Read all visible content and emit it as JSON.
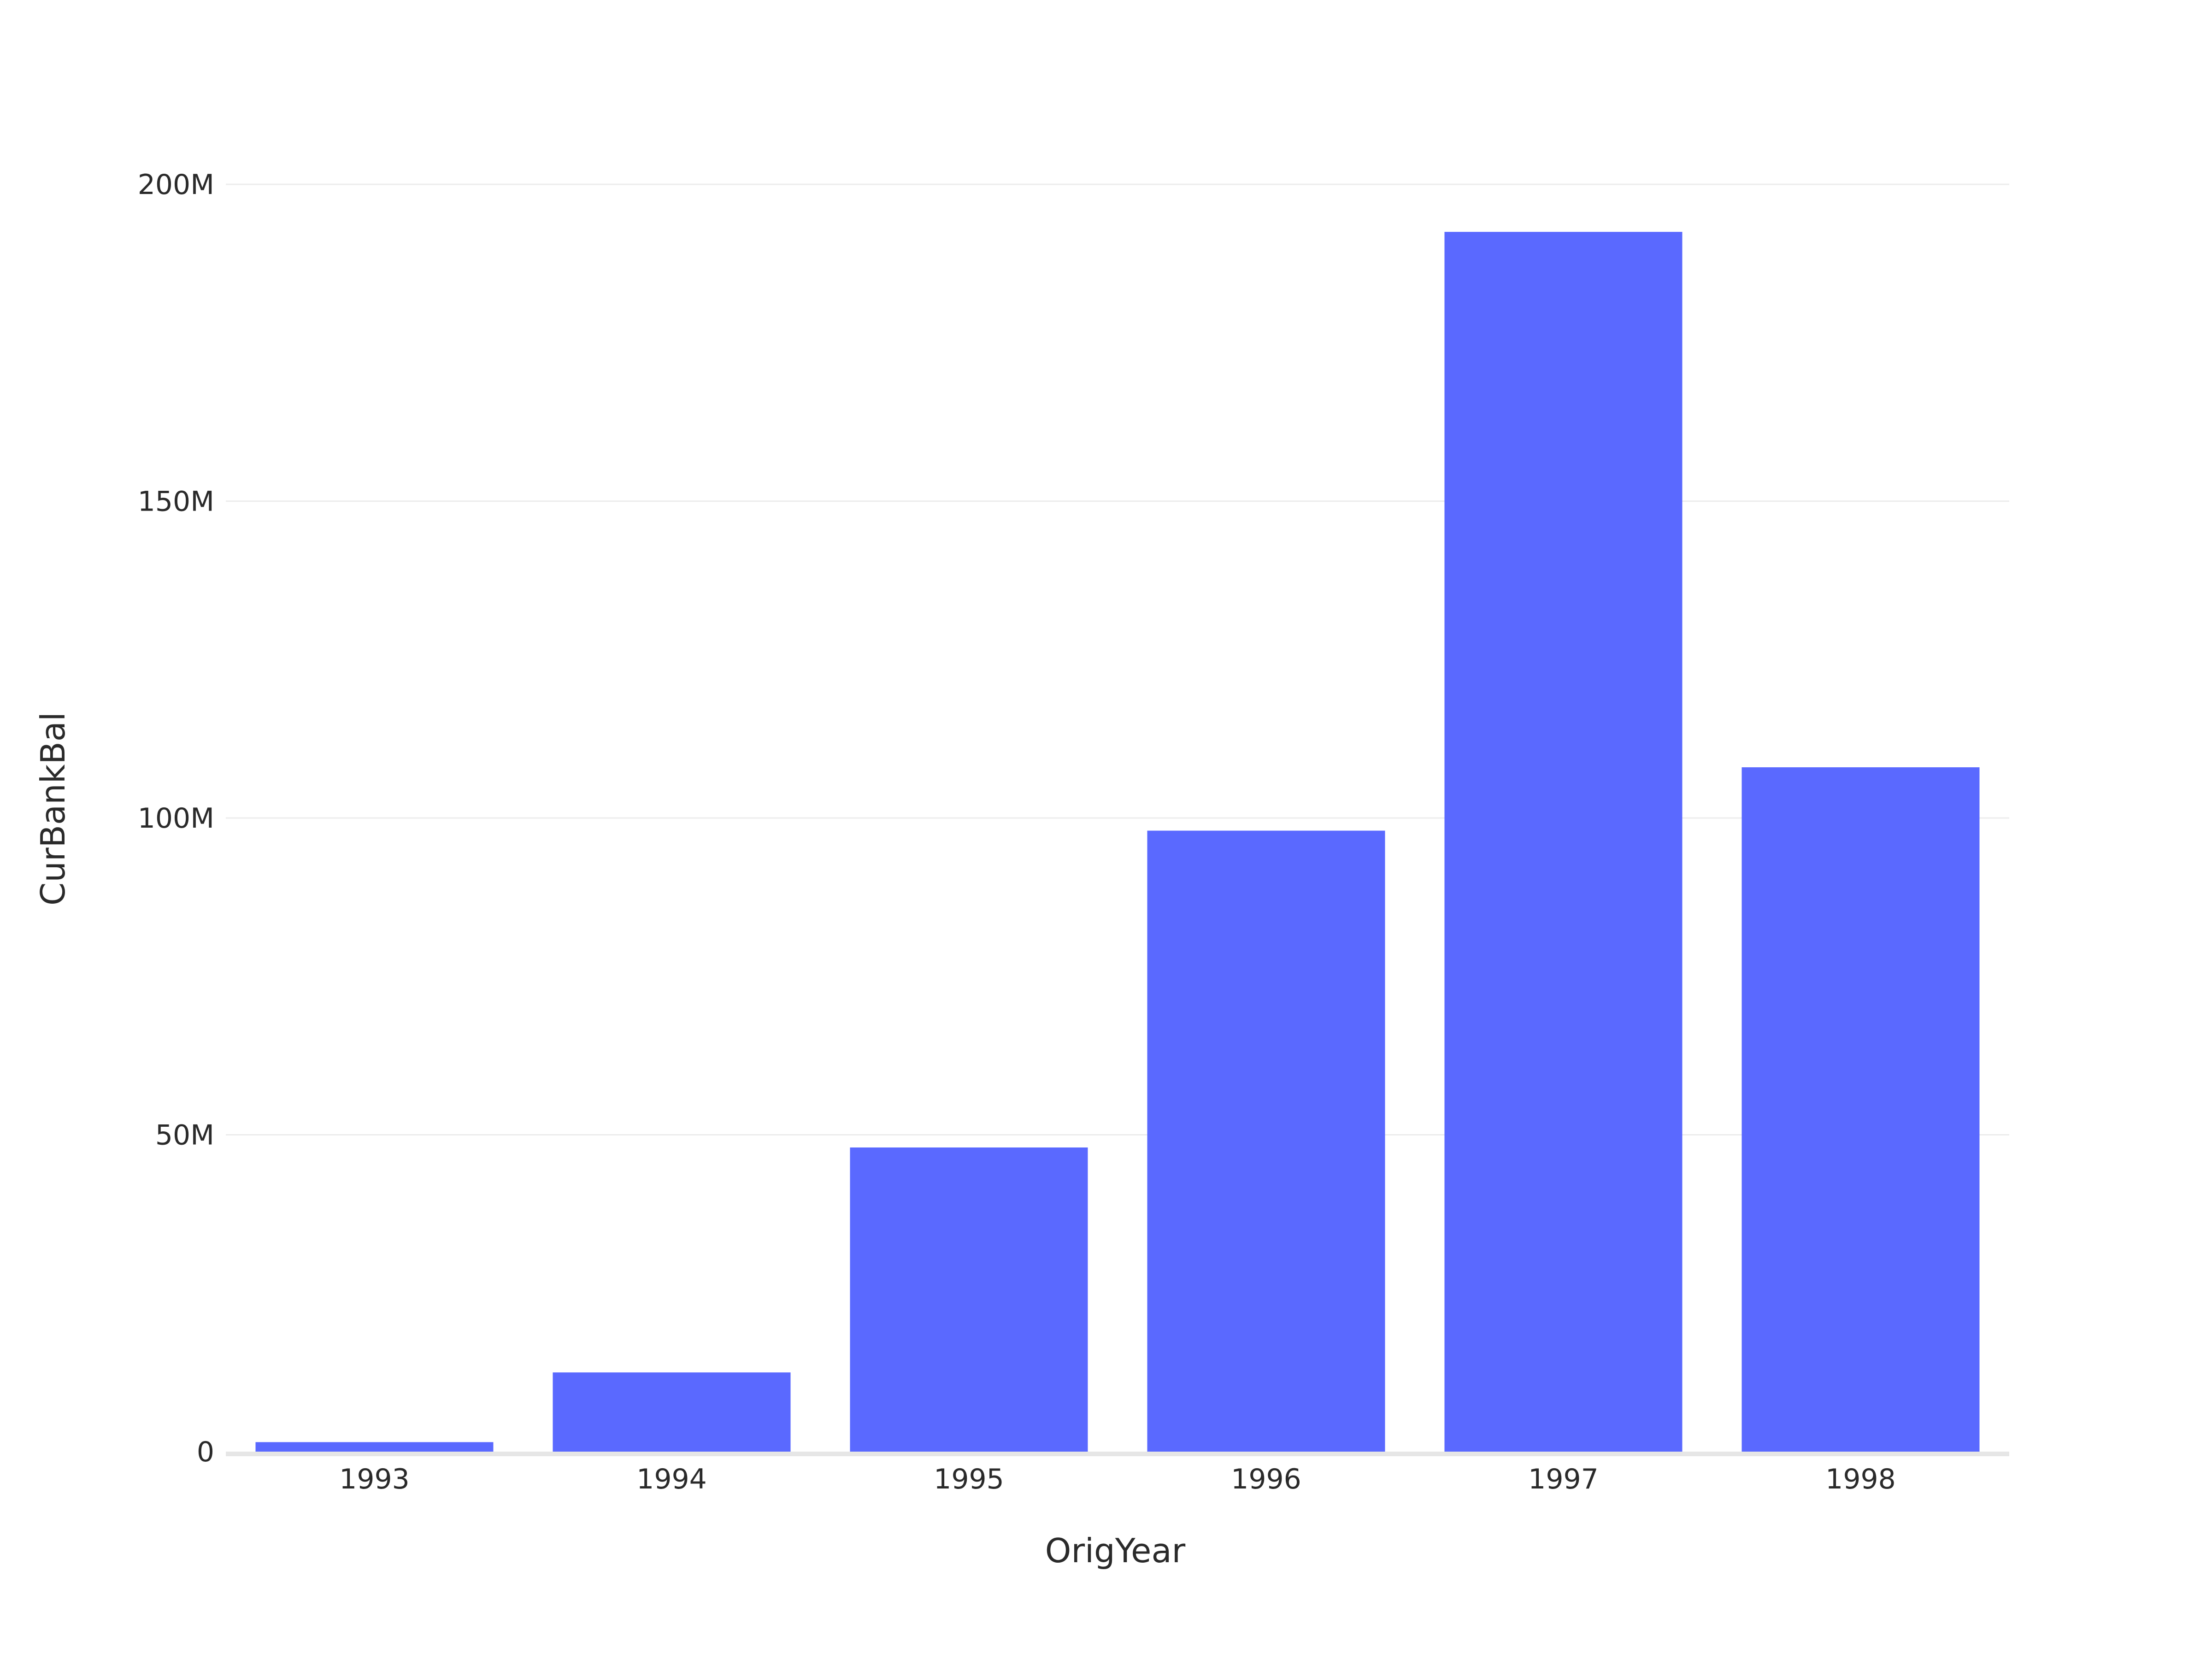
{
  "chart_data": {
    "type": "bar",
    "categories": [
      "1993",
      "1994",
      "1995",
      "1996",
      "1997",
      "1998"
    ],
    "values": [
      1500000,
      12500000,
      48000000,
      98000000,
      192500000,
      108000000
    ],
    "xlabel": "OrigYear",
    "ylabel": "CurBankBal",
    "ylim": [
      0,
      200000000
    ],
    "yticks": [
      0,
      50000000,
      100000000,
      150000000,
      200000000
    ],
    "ytick_labels": [
      "0",
      "50M",
      "100M",
      "150M",
      "200M"
    ],
    "grid": true,
    "legend": "none",
    "bar_color": "#5a69ff"
  }
}
